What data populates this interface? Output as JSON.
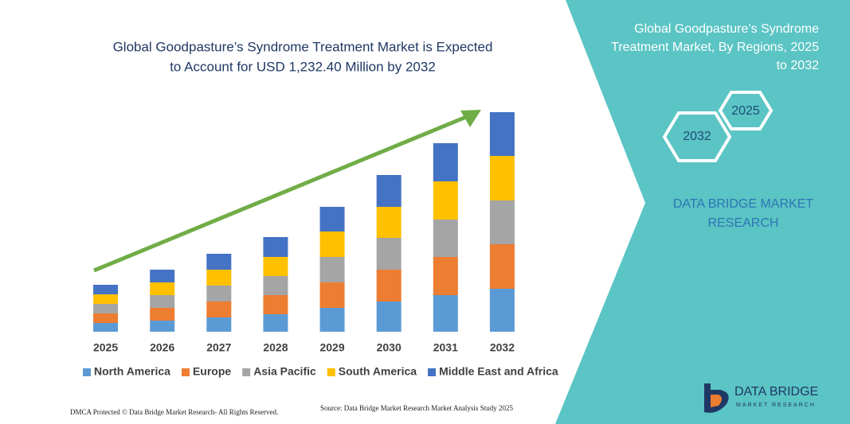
{
  "chart_data": {
    "type": "stacked-bar",
    "title_lines": [
      "Global Goodpasture’s Syndrome Treatment Market is Expected",
      "to Account for USD 1,232.40 Million by 2032"
    ],
    "categories": [
      "2025",
      "2026",
      "2027",
      "2028",
      "2029",
      "2030",
      "2031",
      "2032"
    ],
    "series": [
      {
        "name": "North America",
        "color": "#5b9bd5",
        "values": [
          11,
          14,
          18,
          22,
          30,
          38,
          46,
          54
        ]
      },
      {
        "name": "Europe",
        "color": "#ed7d31",
        "values": [
          12,
          16,
          20,
          24,
          32,
          40,
          48,
          56
        ]
      },
      {
        "name": "Asia Pacific",
        "color": "#a5a5a5",
        "values": [
          12,
          16,
          20,
          24,
          32,
          40,
          47,
          55
        ]
      },
      {
        "name": "South America",
        "color": "#ffc000",
        "values": [
          12,
          16,
          20,
          24,
          32,
          39,
          48,
          56
        ]
      },
      {
        "name": "Middle East and Africa",
        "color": "#4472c4",
        "values": [
          12,
          16,
          20,
          25,
          31,
          40,
          48,
          55
        ]
      }
    ],
    "legend": "bottom"
  },
  "side_panel": {
    "title_lines": [
      "Global Goodpasture’s Syndrome",
      "Treatment Market, By Regions, 2025",
      "to 2032"
    ],
    "hex_labels": [
      "2025",
      "2032"
    ],
    "brand_lines": [
      "DATA BRIDGE MARKET",
      "RESEARCH"
    ]
  },
  "logo": {
    "name": "DATA BRIDGE",
    "tagline": "MARKET RESEARCH"
  },
  "footer": {
    "left": "DMCA Protected © Data Bridge Market Research-  All Rights Reserved.",
    "source": "Source: Data Bridge Market Research  Market Analysis Study 2025"
  }
}
